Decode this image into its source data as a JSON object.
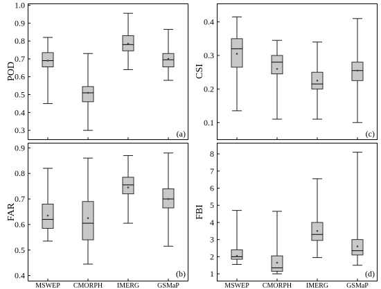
{
  "chart_data": [
    {
      "panel": "(a)",
      "type": "box",
      "ylabel": "POD",
      "ylim": [
        0.25,
        1.01
      ],
      "yticks": [
        "1.0",
        "0.9",
        "0.8",
        "0.7",
        "0.6",
        "0.5",
        "0.4",
        "0.3"
      ],
      "grid": false,
      "box_color": "#c8c8c8",
      "categories": [
        "MSWEP",
        "CMORPH",
        "IMERG",
        "GSMaP"
      ],
      "boxes": [
        {
          "min": 0.45,
          "q1": 0.655,
          "median": 0.69,
          "q3": 0.735,
          "max": 0.82,
          "mean": 0.69
        },
        {
          "min": 0.3,
          "q1": 0.46,
          "median": 0.51,
          "q3": 0.545,
          "max": 0.73,
          "mean": 0.51
        },
        {
          "min": 0.64,
          "q1": 0.745,
          "median": 0.78,
          "q3": 0.83,
          "max": 0.955,
          "mean": 0.785
        },
        {
          "min": 0.58,
          "q1": 0.655,
          "median": 0.695,
          "q3": 0.73,
          "max": 0.865,
          "mean": 0.7
        }
      ]
    },
    {
      "panel": "(b)",
      "type": "box",
      "ylabel": "FAR",
      "ylim": [
        0.38,
        0.92
      ],
      "yticks": [
        "0.9",
        "0.8",
        "0.7",
        "0.6",
        "0.5",
        "0.4"
      ],
      "grid": false,
      "box_color": "#c8c8c8",
      "categories": [
        "MSWEP",
        "CMORPH",
        "IMERG",
        "GSMaP"
      ],
      "boxes": [
        {
          "min": 0.535,
          "q1": 0.585,
          "median": 0.62,
          "q3": 0.68,
          "max": 0.82,
          "mean": 0.635
        },
        {
          "min": 0.445,
          "q1": 0.54,
          "median": 0.605,
          "q3": 0.69,
          "max": 0.86,
          "mean": 0.625
        },
        {
          "min": 0.605,
          "q1": 0.72,
          "median": 0.755,
          "q3": 0.785,
          "max": 0.87,
          "mean": 0.745
        },
        {
          "min": 0.515,
          "q1": 0.665,
          "median": 0.7,
          "q3": 0.74,
          "max": 0.88,
          "mean": 0.7
        }
      ]
    },
    {
      "panel": "(c)",
      "type": "box",
      "ylabel": "CSI",
      "ylim": [
        0.05,
        0.455
      ],
      "yticks": [
        "0.4",
        "0.3",
        "0.2",
        "0.1"
      ],
      "grid": false,
      "box_color": "#c8c8c8",
      "categories": [
        "MSWEP",
        "CMORPH",
        "IMERG",
        "GSMaP"
      ],
      "boxes": [
        {
          "min": 0.135,
          "q1": 0.265,
          "median": 0.32,
          "q3": 0.35,
          "max": 0.415,
          "mean": 0.305
        },
        {
          "min": 0.11,
          "q1": 0.245,
          "median": 0.28,
          "q3": 0.3,
          "max": 0.345,
          "mean": 0.26
        },
        {
          "min": 0.11,
          "q1": 0.2,
          "median": 0.215,
          "q3": 0.25,
          "max": 0.34,
          "mean": 0.225
        },
        {
          "min": 0.1,
          "q1": 0.225,
          "median": 0.255,
          "q3": 0.28,
          "max": 0.41,
          "mean": 0.255
        }
      ]
    },
    {
      "panel": "(d)",
      "type": "box",
      "ylabel": "FBI",
      "ylim": [
        0.6,
        8.65
      ],
      "yticks": [
        "8",
        "7",
        "6",
        "5",
        "4",
        "3",
        "2",
        "1"
      ],
      "grid": false,
      "box_color": "#c8c8c8",
      "categories": [
        "MSWEP",
        "CMORPH",
        "IMERG",
        "GSMaP"
      ],
      "boxes": [
        {
          "min": 1.55,
          "q1": 1.85,
          "median": 2.0,
          "q3": 2.4,
          "max": 4.7,
          "mean": 2.05
        },
        {
          "min": 1.0,
          "q1": 1.15,
          "median": 1.35,
          "q3": 2.05,
          "max": 4.65,
          "mean": 1.65
        },
        {
          "min": 1.95,
          "q1": 2.95,
          "median": 3.3,
          "q3": 4.0,
          "max": 6.55,
          "mean": 3.5
        },
        {
          "min": 1.5,
          "q1": 2.1,
          "median": 2.35,
          "q3": 3.0,
          "max": 8.1,
          "mean": 2.6
        }
      ]
    }
  ]
}
